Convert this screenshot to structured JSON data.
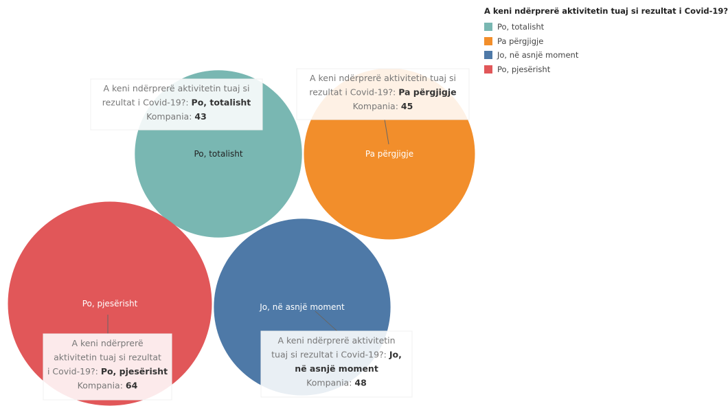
{
  "chart_data": {
    "type": "bubble",
    "title": "",
    "measure_name": "Kompania",
    "dimension_name": "A keni ndërprerë aktivitetin tuaj si rezultat i Covid-19?",
    "series": [
      {
        "name": "Po, totalisht",
        "value": 43,
        "color": "#79b7b2"
      },
      {
        "name": "Pa përgjigje",
        "value": 45,
        "color": "#f28e2b"
      },
      {
        "name": "Jo, në asnjë moment",
        "value": 48,
        "color": "#4e79a7"
      },
      {
        "name": "Po, pjesërisht",
        "value": 64,
        "color": "#e15759"
      }
    ]
  },
  "legend": {
    "title": "A keni ndërprerë aktivitetin tuaj si rezultat i Covid-19?",
    "items": [
      {
        "label": "Po, totalisht",
        "color": "#79b7b2"
      },
      {
        "label": "Pa përgjigje",
        "color": "#f28e2b"
      },
      {
        "label": "Jo, në asnjë moment",
        "color": "#4e79a7"
      },
      {
        "label": "Po, pjesërisht",
        "color": "#e15759"
      }
    ]
  }
}
